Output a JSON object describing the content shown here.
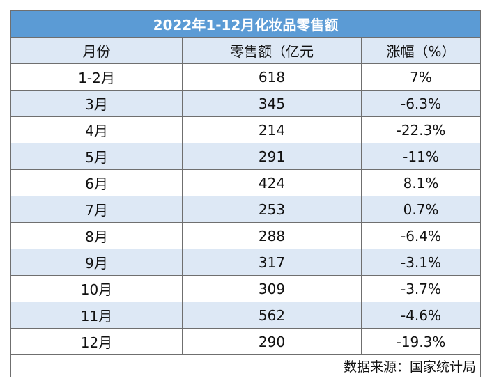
{
  "chart_data": {
    "type": "table",
    "title": "2022年1-12月化妆品零售额",
    "columns": [
      "月份",
      "零售额（亿元",
      "涨幅（%）"
    ],
    "rows": [
      [
        "1-2月",
        "618",
        "7%"
      ],
      [
        "3月",
        "345",
        "-6.3%"
      ],
      [
        "4月",
        "214",
        "-22.3%"
      ],
      [
        "5月",
        "291",
        "-11%"
      ],
      [
        "6月",
        "424",
        "8.1%"
      ],
      [
        "7月",
        "253",
        "0.7%"
      ],
      [
        "8月",
        "288",
        "-6.4%"
      ],
      [
        "9月",
        "317",
        "-3.1%"
      ],
      [
        "10月",
        "309",
        "-3.7%"
      ],
      [
        "11月",
        "562",
        "-4.6%"
      ],
      [
        "12月",
        "290",
        "-19.3%"
      ]
    ],
    "source": "数据来源：国家统计局"
  },
  "colors": {
    "title_background": "#5b9bd5",
    "band_background": "#dde8f5",
    "border": "#6f6f6f"
  }
}
